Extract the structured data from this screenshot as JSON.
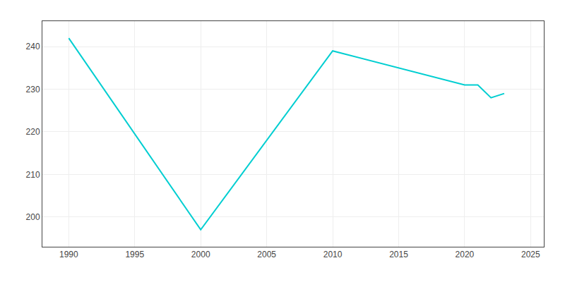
{
  "chart_data": {
    "type": "line",
    "x": [
      1990,
      2000,
      2010,
      2015,
      2020,
      2021,
      2022,
      2023
    ],
    "values": [
      242,
      197,
      239,
      235,
      231,
      231,
      228,
      229
    ],
    "color": "#00CED1",
    "xlim": [
      1988,
      2026
    ],
    "xticks": [
      1990,
      1995,
      2000,
      2005,
      2010,
      2015,
      2020,
      2025
    ],
    "ylim": [
      193,
      246
    ],
    "yticks": [
      200,
      210,
      220,
      230,
      240
    ],
    "grid": true
  }
}
